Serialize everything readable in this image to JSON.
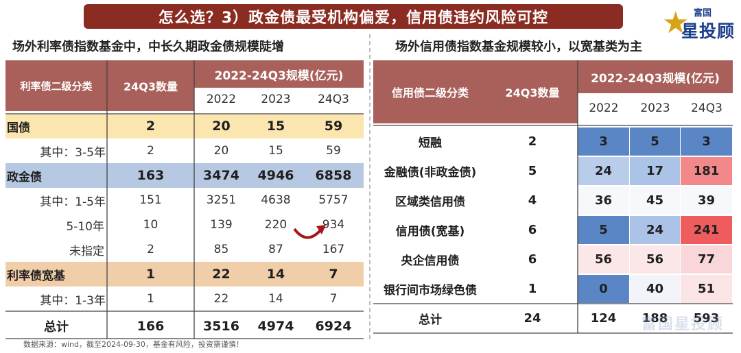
{
  "banner": "怎么选？3）政金债最受机构偏爱，信用债违约风险可控",
  "logo": {
    "small": "富国",
    "big": "星投顾"
  },
  "left_subtitle": "场外利率债指数基金中，中长久期政金债规模陡增",
  "right_subtitle": "场外信用债指数基金规模较小，以宽基类为主",
  "left_table": {
    "h_category": "利率债二级分类",
    "h_count": "24Q3数量",
    "h_scale": "2022-24Q3规模(亿元)",
    "years": [
      "2022",
      "2023",
      "24Q3"
    ],
    "rows": [
      {
        "label": "国债",
        "count": "2",
        "v": [
          "20",
          "15",
          "59"
        ]
      },
      {
        "label": "其中：3-5年",
        "count": "2",
        "v": [
          "20",
          "15",
          "59"
        ]
      },
      {
        "label": "政金债",
        "count": "163",
        "v": [
          "3474",
          "4946",
          "6858"
        ]
      },
      {
        "label": "其中：1-5年",
        "count": "151",
        "v": [
          "3251",
          "4638",
          "5757"
        ]
      },
      {
        "label": "5-10年",
        "count": "10",
        "v": [
          "139",
          "220",
          "934"
        ]
      },
      {
        "label": "未指定",
        "count": "2",
        "v": [
          "85",
          "87",
          "167"
        ]
      },
      {
        "label": "利率债宽基",
        "count": "1",
        "v": [
          "22",
          "14",
          "7"
        ]
      },
      {
        "label": "其中：1-3年",
        "count": "1",
        "v": [
          "22",
          "14",
          "7"
        ]
      },
      {
        "label": "总计",
        "count": "166",
        "v": [
          "3516",
          "4974",
          "6924"
        ]
      }
    ]
  },
  "right_table": {
    "h_category": "信用债二级分类",
    "h_count": "24Q3数量",
    "h_scale": "2022-24Q3规模(亿元)",
    "years": [
      "2022",
      "2023",
      "24Q3"
    ],
    "rows": [
      {
        "label": "短融",
        "count": "2",
        "v": [
          "3",
          "5",
          "3"
        ]
      },
      {
        "label": "金融债(非政金债)",
        "count": "5",
        "v": [
          "24",
          "17",
          "181"
        ]
      },
      {
        "label": "区域类信用债",
        "count": "4",
        "v": [
          "36",
          "45",
          "39"
        ]
      },
      {
        "label": "信用债(宽基)",
        "count": "6",
        "v": [
          "5",
          "24",
          "241"
        ]
      },
      {
        "label": "央企信用债",
        "count": "6",
        "v": [
          "56",
          "56",
          "77"
        ]
      },
      {
        "label": "银行间市场绿色债",
        "count": "1",
        "v": [
          "0",
          "40",
          "51"
        ]
      },
      {
        "label": "总计",
        "count": "24",
        "v": [
          "124",
          "188",
          "593"
        ]
      }
    ],
    "colors": [
      [
        "#5b86c6",
        "#5b86c6",
        "#5b86c6"
      ],
      [
        "#b9cdea",
        "#aac3e6",
        "#f2888a"
      ],
      [
        "#f7f8fc",
        "#f7f8fc",
        "#f7f8fc"
      ],
      [
        "#5b86c6",
        "#aac3e6",
        "#ee5c5e"
      ],
      [
        "#fbe6e8",
        "#fbe6e8",
        "#f9d6d9"
      ],
      [
        "#5b86c6",
        "#f3f4fa",
        "#fbe4e6"
      ],
      [
        "#ffffff",
        "#ffffff",
        "#ffffff"
      ]
    ]
  },
  "footnote": "数据来源：wind，截至2024-09-30，基金有风险，投资需谨慎！",
  "watermark": "富国星投顾"
}
